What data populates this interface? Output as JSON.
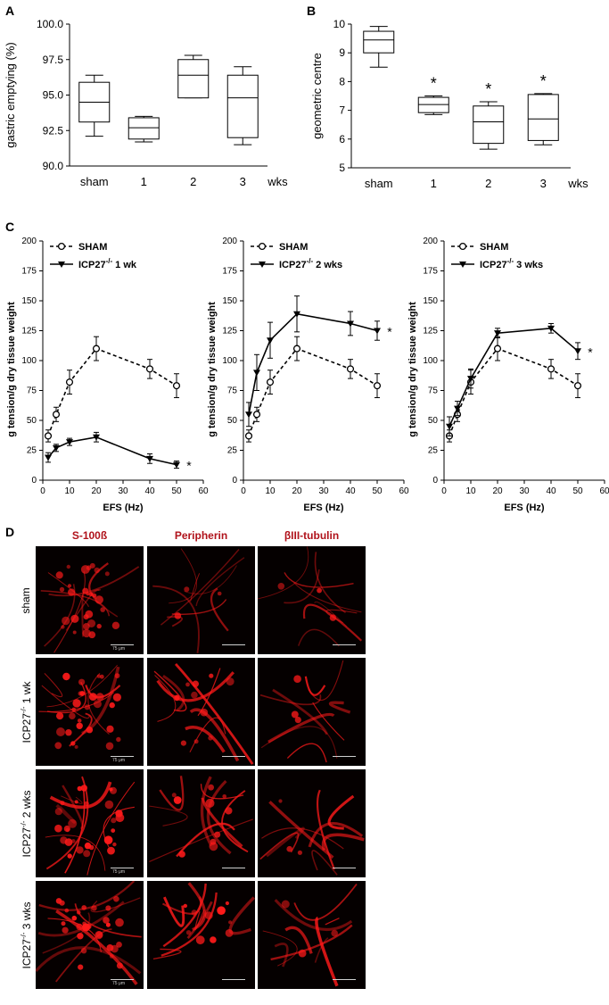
{
  "panel_labels": {
    "A": "A",
    "B": "B",
    "C": "C",
    "D": "D"
  },
  "chart_data": [
    {
      "id": "A",
      "type": "box",
      "ylabel": "gastric emptying (%)",
      "categories": [
        "sham",
        "1",
        "2",
        "3"
      ],
      "x_unit": "wks",
      "yticks": [
        "90.0",
        "92.5",
        "95.0",
        "97.5",
        "100.0"
      ],
      "ylim": [
        90,
        100
      ],
      "boxes": [
        {
          "min": 92.1,
          "q1": 93.1,
          "median": 94.5,
          "q3": 95.9,
          "max": 96.4
        },
        {
          "min": 91.7,
          "q1": 91.9,
          "median": 92.7,
          "q3": 93.4,
          "max": 93.5
        },
        {
          "min": 94.8,
          "q1": 94.8,
          "median": 96.4,
          "q3": 97.5,
          "max": 97.8
        },
        {
          "min": 91.5,
          "q1": 92.0,
          "median": 94.8,
          "q3": 96.4,
          "max": 97.0
        }
      ],
      "significance": [
        "",
        "",
        "",
        ""
      ]
    },
    {
      "id": "B",
      "type": "box",
      "ylabel": "geometric centre",
      "categories": [
        "sham",
        "1",
        "2",
        "3"
      ],
      "x_unit": "wks",
      "yticks": [
        "5",
        "6",
        "7",
        "8",
        "9",
        "10"
      ],
      "ylim": [
        5,
        10
      ],
      "boxes": [
        {
          "min": 8.5,
          "q1": 9.0,
          "median": 9.45,
          "q3": 9.75,
          "max": 9.92
        },
        {
          "min": 6.85,
          "q1": 6.92,
          "median": 7.2,
          "q3": 7.45,
          "max": 7.5
        },
        {
          "min": 5.65,
          "q1": 5.85,
          "median": 6.6,
          "q3": 7.15,
          "max": 7.3
        },
        {
          "min": 5.8,
          "q1": 5.95,
          "median": 6.7,
          "q3": 7.55,
          "max": 7.58
        }
      ],
      "significance": [
        "",
        "*",
        "*",
        "*"
      ]
    },
    {
      "id": "C1",
      "type": "line",
      "xlabel": "EFS (Hz)",
      "ylabel": "g tension/g dry tissue weight",
      "xlim": [
        0,
        60
      ],
      "ylim": [
        0,
        200
      ],
      "xticks": [
        "0",
        "10",
        "20",
        "30",
        "40",
        "50",
        "60"
      ],
      "yticks": [
        "0",
        "25",
        "50",
        "75",
        "100",
        "125",
        "150",
        "175",
        "200"
      ],
      "x": [
        2,
        5,
        10,
        20,
        40,
        50
      ],
      "series": [
        {
          "name": "SHAM",
          "style": "dashed",
          "marker": "open-circle",
          "values": [
            37,
            55,
            82,
            110,
            93,
            79
          ],
          "errors": [
            5,
            6,
            10,
            10,
            8,
            10
          ]
        },
        {
          "name": "ICP27",
          "name_sup": "-/-",
          "name_suffix": "1 wk",
          "style": "solid",
          "marker": "filled-down-triangle",
          "values": [
            19,
            27,
            32,
            36,
            18,
            13
          ],
          "errors": [
            4,
            3,
            3,
            4,
            4,
            3
          ]
        }
      ],
      "annotation": "*"
    },
    {
      "id": "C2",
      "type": "line",
      "xlabel": "EFS (Hz)",
      "ylabel": "g tension/g dry tissue weight",
      "xlim": [
        0,
        60
      ],
      "ylim": [
        0,
        200
      ],
      "xticks": [
        "0",
        "10",
        "20",
        "30",
        "40",
        "50",
        "60"
      ],
      "yticks": [
        "0",
        "25",
        "50",
        "75",
        "100",
        "125",
        "150",
        "175",
        "200"
      ],
      "x": [
        2,
        5,
        10,
        20,
        40,
        50
      ],
      "series": [
        {
          "name": "SHAM",
          "style": "dashed",
          "marker": "open-circle",
          "values": [
            37,
            55,
            82,
            110,
            93,
            79
          ],
          "errors": [
            5,
            6,
            10,
            10,
            8,
            10
          ]
        },
        {
          "name": "ICP27",
          "name_sup": "-/-",
          "name_suffix": "2 wks",
          "style": "solid",
          "marker": "filled-down-triangle",
          "values": [
            55,
            90,
            117,
            139,
            131,
            125
          ],
          "errors": [
            10,
            15,
            15,
            15,
            10,
            8
          ]
        }
      ],
      "annotation": "*"
    },
    {
      "id": "C3",
      "type": "line",
      "xlabel": "EFS (Hz)",
      "ylabel": "g tension/g dry tissue weight",
      "xlim": [
        0,
        60
      ],
      "ylim": [
        0,
        200
      ],
      "xticks": [
        "0",
        "10",
        "20",
        "30",
        "40",
        "50",
        "60"
      ],
      "yticks": [
        "0",
        "25",
        "50",
        "75",
        "100",
        "125",
        "150",
        "175",
        "200"
      ],
      "x": [
        2,
        5,
        10,
        20,
        40,
        50
      ],
      "series": [
        {
          "name": "SHAM",
          "style": "dashed",
          "marker": "open-circle",
          "values": [
            37,
            55,
            82,
            110,
            93,
            79
          ],
          "errors": [
            5,
            6,
            10,
            10,
            8,
            10
          ]
        },
        {
          "name": "ICP27",
          "name_sup": "-/-",
          "name_suffix": "3 wks",
          "style": "solid",
          "marker": "filled-down-triangle",
          "values": [
            45,
            60,
            85,
            123,
            127,
            108
          ],
          "errors": [
            8,
            6,
            8,
            4,
            4,
            7
          ]
        }
      ],
      "annotation": "*"
    }
  ],
  "micrographs": {
    "columns": [
      "S-100ß",
      "Peripherin",
      "βIII-tubulin"
    ],
    "rows": [
      {
        "label": "sham",
        "sup": "",
        "suffix": ""
      },
      {
        "label": "ICP27",
        "sup": "-/-",
        "suffix": " 1 wk"
      },
      {
        "label": "ICP27",
        "sup": "-/-",
        "suffix": " 2 wks"
      },
      {
        "label": "ICP27",
        "sup": "-/-",
        "suffix": " 3 wks"
      }
    ],
    "scale_label": "75 μm",
    "colors": {
      "stain": "#ff1a1a",
      "background": "#050000",
      "header": "#b0121b"
    }
  }
}
